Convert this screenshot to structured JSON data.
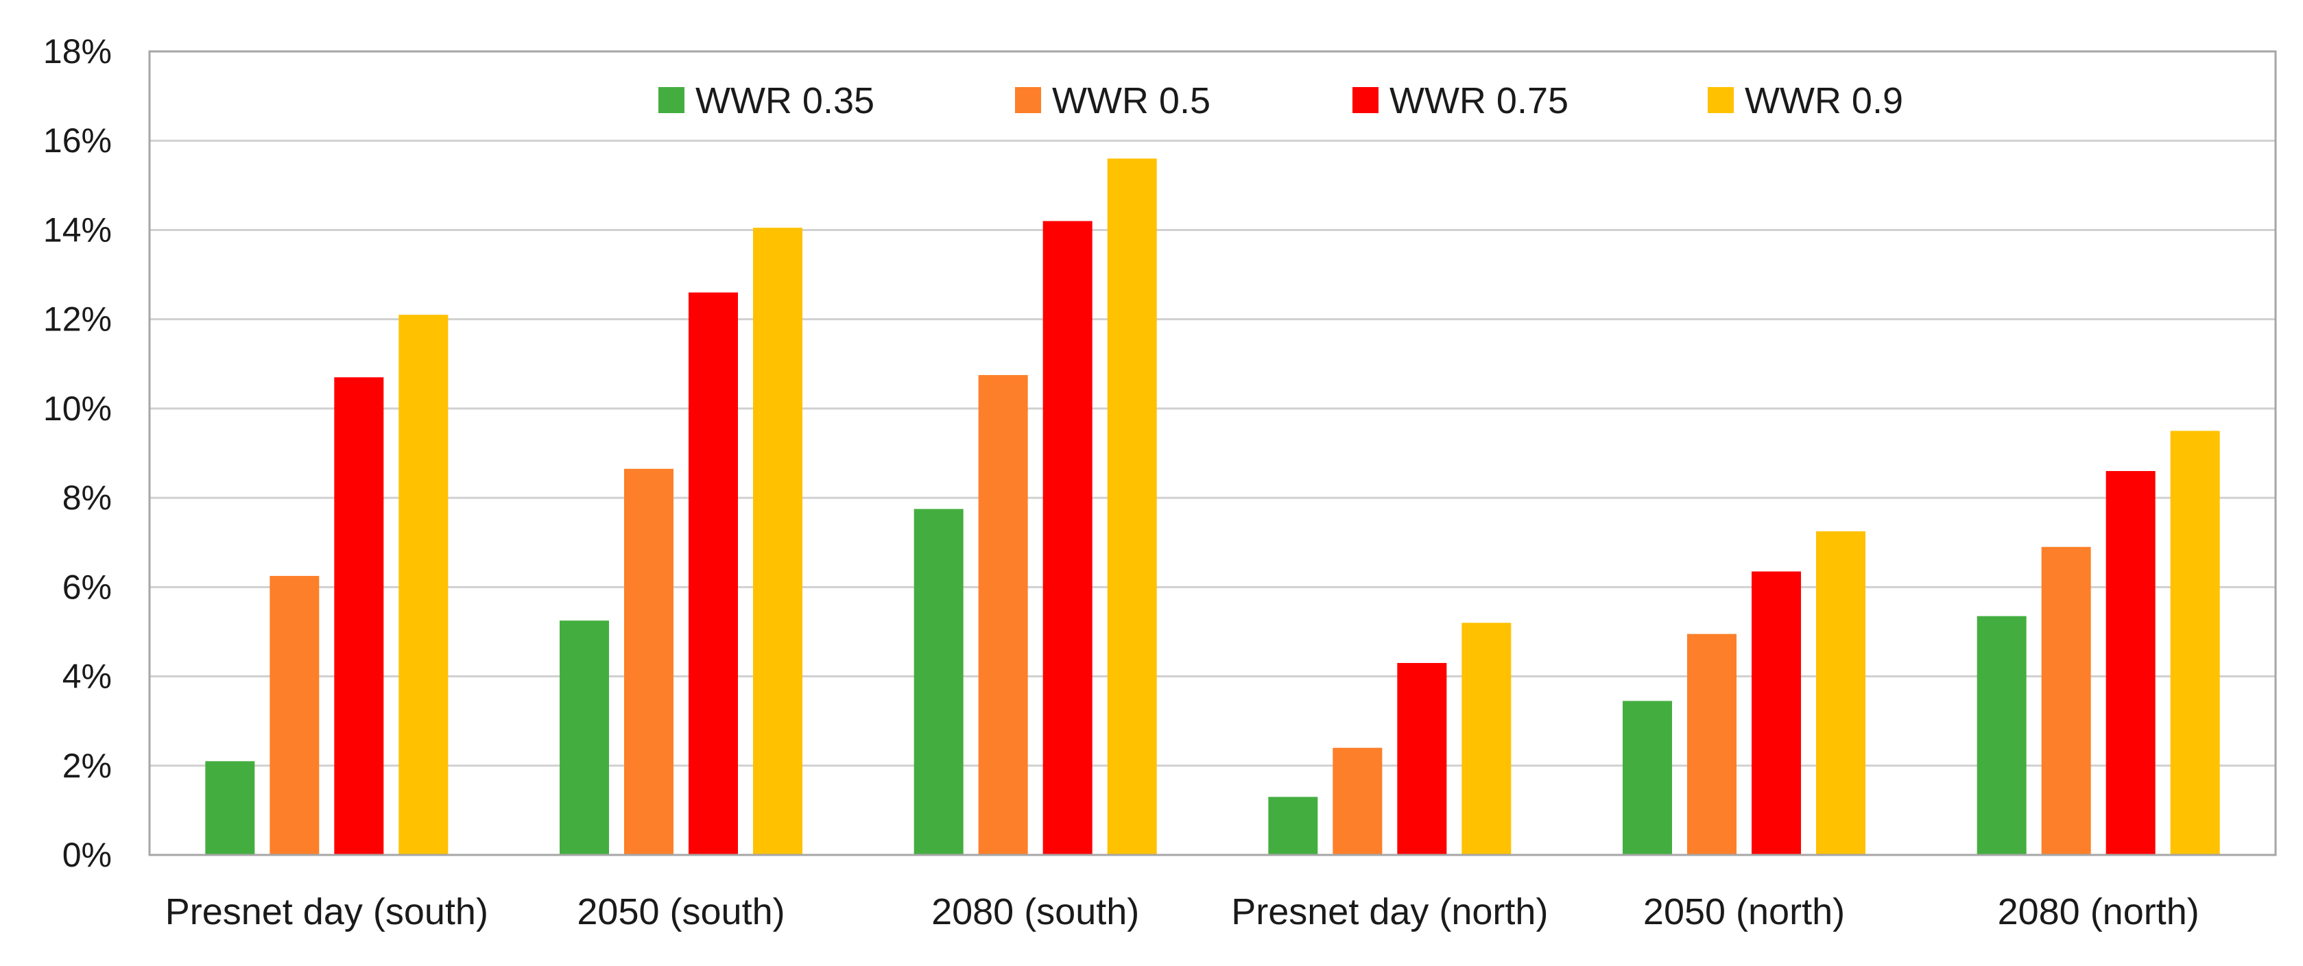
{
  "chart_data": {
    "type": "bar",
    "title": "",
    "xlabel": "",
    "ylabel": "",
    "categories": [
      "Presnet day (south)",
      "2050 (south)",
      "2080 (south)",
      "Presnet day (north)",
      "2050 (north)",
      "2080 (north)"
    ],
    "series": [
      {
        "name": "WWR 0.35",
        "color": "#43ae3f",
        "values": [
          2.1,
          5.25,
          7.75,
          1.3,
          3.45,
          5.35
        ]
      },
      {
        "name": "WWR 0.5",
        "color": "#fd7f29",
        "values": [
          6.25,
          8.65,
          10.75,
          2.4,
          4.95,
          6.9
        ]
      },
      {
        "name": "WWR 0.75",
        "color": "#fe0000",
        "values": [
          10.7,
          12.6,
          14.2,
          4.3,
          6.35,
          8.6
        ]
      },
      {
        "name": "WWR 0.9",
        "color": "#ffc100",
        "values": [
          12.1,
          14.05,
          15.6,
          5.2,
          7.25,
          9.5
        ]
      }
    ],
    "ylim": [
      0,
      18
    ],
    "yticks": [
      "0%",
      "2%",
      "4%",
      "6%",
      "8%",
      "10%",
      "12%",
      "14%",
      "16%",
      "18%"
    ],
    "grid": true,
    "legend_position": "top-center"
  }
}
